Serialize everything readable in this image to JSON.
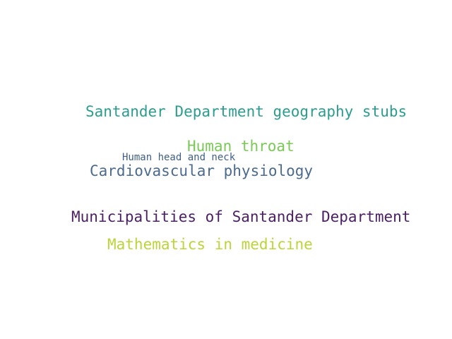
{
  "word_cloud": {
    "words": [
      {
        "text": "Santander Department geography stubs",
        "color": "#2a9d8f"
      },
      {
        "text": "Human throat",
        "color": "#7ac857"
      },
      {
        "text": "Human head and neck",
        "color": "#3e5f8a"
      },
      {
        "text": "Cardiovascular physiology",
        "color": "#4a6a8f"
      },
      {
        "text": "Municipalities of Santander Department",
        "color": "#4b1f63"
      },
      {
        "text": "Mathematics in medicine",
        "color": "#bcd43a"
      }
    ]
  }
}
